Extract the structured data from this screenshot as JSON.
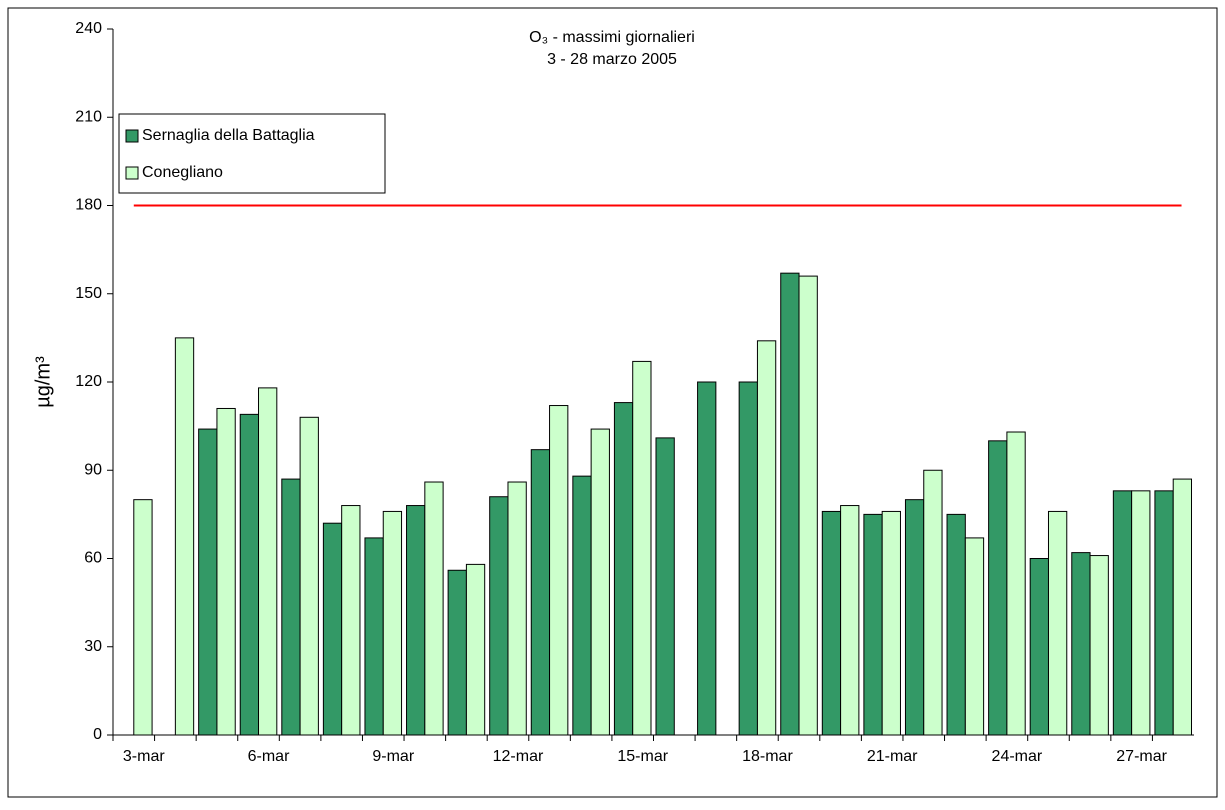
{
  "chart_data": {
    "type": "bar",
    "title": "O₃ - massimi giornalieri",
    "subtitle": "3 - 28 marzo 2005",
    "y_label": "µg/m³",
    "categories": [
      "3-mar",
      null,
      null,
      "6-mar",
      null,
      null,
      "9-mar",
      null,
      null,
      "12-mar",
      null,
      null,
      "15-mar",
      null,
      null,
      "18-mar",
      null,
      null,
      "21-mar",
      null,
      null,
      "24-mar",
      null,
      null,
      "27-mar",
      null
    ],
    "series": [
      {
        "name": "Sernaglia della Battaglia",
        "color": "#339966",
        "values": [
          null,
          null,
          104,
          109,
          87,
          72,
          67,
          78,
          56,
          81,
          97,
          88,
          113,
          101,
          120,
          120,
          157,
          76,
          75,
          80,
          75,
          100,
          60,
          62,
          83,
          83
        ]
      },
      {
        "name": "Conegliano",
        "color": "#ccffcc",
        "values": [
          80,
          135,
          111,
          118,
          108,
          78,
          76,
          86,
          58,
          86,
          112,
          104,
          127,
          null,
          null,
          134,
          156,
          78,
          76,
          90,
          67,
          103,
          76,
          61,
          83,
          87
        ]
      }
    ],
    "reference_line": {
      "value": 180,
      "color": "#ff0000"
    },
    "ylim": [
      0,
      240
    ],
    "yticks": [
      0,
      30,
      60,
      90,
      120,
      150,
      180,
      210,
      240
    ]
  }
}
